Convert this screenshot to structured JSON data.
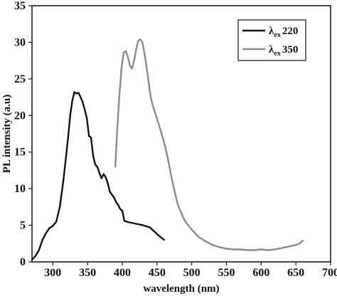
{
  "chart_data": {
    "type": "line",
    "title": "",
    "xlabel": "wavelength (nm)",
    "ylabel": "PL intensity (a.u)",
    "xlim": [
      270,
      700
    ],
    "ylim": [
      0,
      35
    ],
    "xticks": [
      300,
      350,
      400,
      450,
      500,
      550,
      600,
      650,
      700
    ],
    "yticks": [
      0,
      5,
      10,
      15,
      20,
      25,
      30,
      35
    ],
    "grid": false,
    "legend_position": "top-right",
    "series": [
      {
        "name": "λex 220",
        "legend_symbol": "λ",
        "legend_subscript": "ex",
        "legend_value": "220",
        "color": "#111111",
        "x": [
          270,
          275,
          280,
          285,
          290,
          295,
          300,
          305,
          310,
          315,
          318,
          322,
          325,
          328,
          331,
          334,
          337,
          340,
          343,
          346,
          349,
          352,
          355,
          358,
          361,
          364,
          367,
          370,
          373,
          376,
          379,
          382,
          385,
          388,
          391,
          394,
          397,
          400,
          403,
          410,
          420,
          430,
          440,
          450,
          455,
          460
        ],
        "y": [
          0.3,
          0.8,
          1.6,
          3.0,
          3.9,
          4.6,
          4.9,
          5.5,
          7.5,
          11.0,
          13.5,
          17.0,
          20.0,
          22.0,
          23.2,
          23.0,
          23.1,
          22.5,
          21.8,
          20.8,
          19.6,
          17.2,
          17.0,
          14.5,
          13.3,
          13.0,
          12.2,
          11.4,
          12.0,
          11.6,
          10.8,
          9.6,
          9.2,
          8.8,
          8.2,
          7.8,
          7.2,
          7.0,
          5.6,
          5.4,
          5.2,
          5.0,
          4.7,
          3.8,
          3.4,
          3.0
        ]
      },
      {
        "name": "λex 350",
        "legend_symbol": "λ",
        "legend_subscript": "ex",
        "legend_value": "350",
        "color": "#8a8a8a",
        "x": [
          390,
          393,
          396,
          399,
          402,
          405,
          408,
          411,
          414,
          417,
          420,
          423,
          426,
          429,
          432,
          435,
          438,
          441,
          444,
          447,
          450,
          455,
          460,
          465,
          470,
          475,
          480,
          490,
          500,
          510,
          520,
          530,
          540,
          550,
          560,
          570,
          580,
          590,
          600,
          610,
          620,
          630,
          640,
          650,
          655,
          660
        ],
        "y": [
          13.0,
          18.5,
          23.0,
          26.5,
          28.6,
          28.8,
          28.0,
          26.8,
          26.4,
          27.5,
          29.0,
          30.2,
          30.4,
          30.0,
          28.5,
          26.5,
          24.5,
          22.5,
          21.3,
          20.5,
          19.6,
          18.0,
          16.4,
          14.4,
          12.0,
          9.8,
          7.8,
          5.6,
          4.4,
          3.4,
          2.8,
          2.3,
          2.0,
          1.8,
          1.7,
          1.7,
          1.6,
          1.6,
          1.7,
          1.6,
          1.7,
          1.9,
          2.1,
          2.3,
          2.5,
          2.9
        ]
      }
    ]
  }
}
